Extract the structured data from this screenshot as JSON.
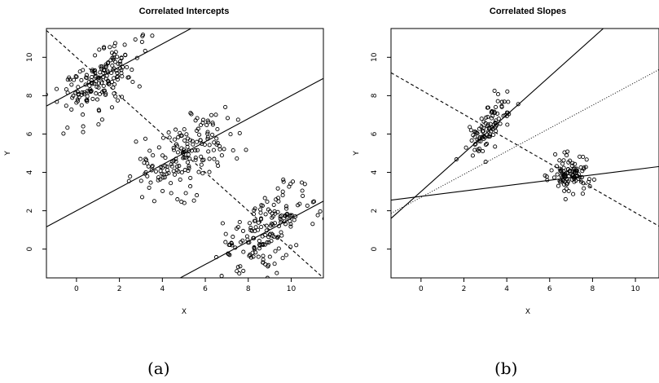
{
  "captions": [
    "(a)",
    "(b)"
  ],
  "chart_data": [
    {
      "type": "scatter",
      "title": "Correlated Intercepts",
      "xlabel": "X",
      "ylabel": "Y",
      "xlim": [
        -1.4,
        11.5
      ],
      "ylim": [
        -1.5,
        11.5
      ],
      "xticks": [
        0,
        2,
        4,
        6,
        8,
        10
      ],
      "yticks": [
        0,
        2,
        4,
        6,
        8,
        10
      ],
      "grid": false,
      "clusters": [
        {
          "center": [
            1.0,
            8.8
          ],
          "spread": [
            0.9,
            0.9
          ],
          "corr": 0.55,
          "count": 170
        },
        {
          "center": [
            5.0,
            5.0
          ],
          "spread": [
            1.2,
            1.2
          ],
          "corr": 0.55,
          "count": 170
        },
        {
          "center": [
            9.0,
            1.0
          ],
          "spread": [
            1.1,
            1.1
          ],
          "corr": 0.55,
          "count": 170
        }
      ],
      "lines": [
        {
          "style": "solid",
          "intercept": 8.3,
          "slope": 0.6
        },
        {
          "style": "solid",
          "intercept": 2.0,
          "slope": 0.6
        },
        {
          "style": "solid",
          "intercept": -4.4,
          "slope": 0.6
        },
        {
          "style": "dashed",
          "intercept": 10.0,
          "slope": -1.0
        }
      ]
    },
    {
      "type": "scatter",
      "title": "Correlated Slopes",
      "xlabel": "X",
      "ylabel": "Y",
      "xlim": [
        -1.4,
        11.1
      ],
      "ylim": [
        -1.5,
        11.5
      ],
      "xticks": [
        0,
        2,
        4,
        6,
        8,
        10
      ],
      "yticks": [
        0,
        2,
        4,
        6,
        8,
        10
      ],
      "grid": false,
      "clusters": [
        {
          "center": [
            3.1,
            6.3
          ],
          "spread": [
            0.55,
            0.75
          ],
          "corr": 0.75,
          "count": 95
        },
        {
          "center": [
            7.0,
            3.8
          ],
          "spread": [
            0.45,
            0.45
          ],
          "corr": 0.1,
          "count": 100
        }
      ],
      "lines": [
        {
          "style": "solid",
          "intercept": 3.0,
          "slope": 1.0
        },
        {
          "style": "solid",
          "intercept": 2.75,
          "slope": 0.14
        },
        {
          "style": "dotted",
          "intercept": 2.7,
          "slope": 0.6
        },
        {
          "style": "dashed",
          "intercept": 8.3,
          "slope": -0.64
        }
      ]
    }
  ]
}
